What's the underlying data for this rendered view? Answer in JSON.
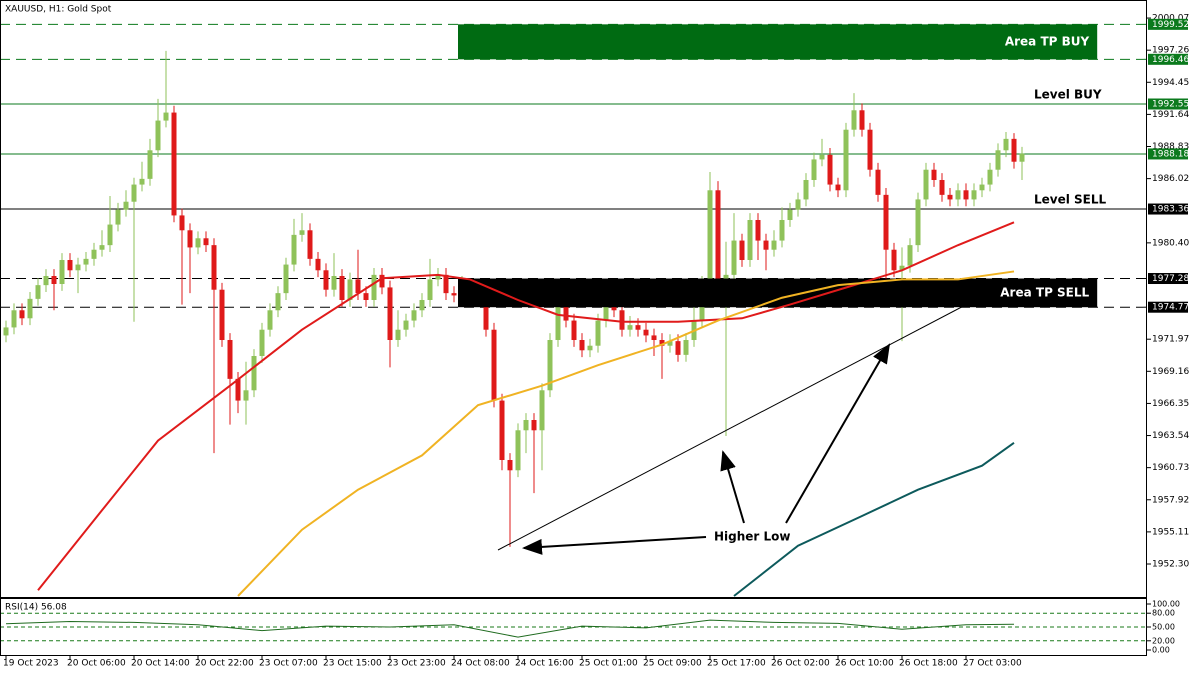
{
  "header": "XAUUSD, H1:  Gold Spot",
  "chart_data": [
    {
      "type": "candlestick",
      "up_color": "#8fc25a",
      "down_color": "#df1a1a",
      "xlim": [
        -0.75,
        142.625
      ],
      "xticks": [
        {
          "value": 0,
          "label": "19 Oct 2023"
        },
        {
          "value": 8,
          "label": "20 Oct 06:00"
        },
        {
          "value": 16,
          "label": "20 Oct 14:00"
        },
        {
          "value": 24,
          "label": "20 Oct 22:00"
        },
        {
          "value": 32,
          "label": "23 Oct 07:00"
        },
        {
          "value": 40,
          "label": "23 Oct 15:00"
        },
        {
          "value": 48,
          "label": "23 Oct 23:00"
        },
        {
          "value": 56,
          "label": "24 Oct 08:00"
        },
        {
          "value": 64,
          "label": "24 Oct 16:00"
        },
        {
          "value": 72,
          "label": "25 Oct 01:00"
        },
        {
          "value": 80,
          "label": "25 Oct 09:00"
        },
        {
          "value": 88,
          "label": "25 Oct 17:00"
        },
        {
          "value": 96,
          "label": "26 Oct 02:00"
        },
        {
          "value": 104,
          "label": "26 Oct 10:00"
        },
        {
          "value": 112,
          "label": "26 Oct 18:00"
        },
        {
          "value": 120,
          "label": "27 Oct 03:00"
        }
      ],
      "ylim": [
        1949.5,
        2001.3
      ],
      "yticks": [
        2000.07,
        1997.26,
        1994.45,
        1991.64,
        1988.83,
        1986.02,
        {
          "value": 1980.4,
          "label": "1980.40"
        },
        1971.97,
        1969.16,
        1966.35,
        1963.54,
        1960.73,
        1957.92,
        1955.11,
        {
          "value": 1952.3,
          "label": "1952.30"
        }
      ],
      "open": [
        1972.3,
        1973.0,
        1974.5,
        1973.8,
        1975.5,
        1976.7,
        1977.5,
        1976.8,
        1978.9,
        1978.0,
        1978.5,
        1979.0,
        1979.8,
        1980.2,
        1982.0,
        1983.3,
        1984.0,
        1985.5,
        1986.0,
        1988.5,
        1991.1,
        1991.8,
        1982.8,
        1981.5,
        1980.0,
        1980.8,
        1980.2,
        1976.3,
        1971.9,
        1968.5,
        1966.6,
        1967.5,
        1970.5,
        1972.8,
        1974.5,
        1976.0,
        1978.5,
        1981.1,
        1981.5,
        1979.0,
        1978.0,
        1976.3,
        1977.5,
        1975.4,
        1977.2,
        1976.0,
        1975.4,
        1977.6,
        1976.5,
        1971.9,
        1972.8,
        1973.6,
        1974.5,
        1975.4,
        1977.2,
        1977.6,
        1976.0,
        1975.8,
        1976.3,
        1976.6,
        1975.4,
        1972.8,
        1966.6,
        1961.4,
        1960.5,
        1964.0,
        1964.9,
        1964.0,
        1967.5,
        1971.9,
        1975.4,
        1973.6,
        1971.9,
        1971.0,
        1971.4,
        1973.6,
        1975.4,
        1974.5,
        1972.8,
        1973.2,
        1972.8,
        1972.3,
        1971.9,
        1971.4,
        1971.8,
        1970.6,
        1971.9,
        1973.6,
        1976.0,
        1985.0,
        1977.2,
        1977.6,
        1980.6,
        1978.9,
        1982.4,
        1980.6,
        1979.8,
        1980.6,
        1982.4,
        1983.3,
        1984.2,
        1985.9,
        1987.7,
        1988.1,
        1985.5,
        1985.0,
        1990.3,
        1992.0,
        1990.3,
        1986.8,
        1984.6,
        1979.8,
        1978.0,
        1978.4,
        1980.2,
        1984.2,
        1986.8,
        1985.9,
        1984.6,
        1984.2,
        1985.0,
        1984.2,
        1985.0,
        1985.5,
        1986.8,
        1988.5,
        1989.5,
        1987.5
      ],
      "high": [
        1973.6,
        1975.1,
        1975.1,
        1976.1,
        1977.3,
        1978.1,
        1978.1,
        1979.5,
        1979.5,
        1979.1,
        1979.6,
        1980.4,
        1981.5,
        1984.5,
        1983.9,
        1985.0,
        1986.1,
        1987.5,
        1989.5,
        1993.0,
        1997.2,
        1992.4,
        1983.4,
        1982.1,
        1981.4,
        1981.4,
        1980.8,
        1976.9,
        1972.5,
        1969.1,
        1970.0,
        1971.1,
        1973.4,
        1975.1,
        1976.6,
        1979.1,
        1982.5,
        1983.0,
        1982.1,
        1979.6,
        1978.6,
        1979.5,
        1978.1,
        1977.8,
        1979.8,
        1976.6,
        1978.2,
        1978.2,
        1977.1,
        1974.5,
        1974.2,
        1975.1,
        1976.0,
        1979.0,
        1978.2,
        1978.2,
        1976.6,
        1977.5,
        1977.2,
        1977.2,
        1976.0,
        1973.4,
        1967.2,
        1962.0,
        1964.6,
        1965.5,
        1965.5,
        1968.1,
        1972.5,
        1976.5,
        1977.0,
        1974.2,
        1972.5,
        1972.0,
        1974.2,
        1976.6,
        1976.0,
        1975.1,
        1974.0,
        1973.8,
        1973.4,
        1972.9,
        1972.5,
        1972.4,
        1972.4,
        1972.5,
        1976.5,
        1977.5,
        1986.6,
        1985.8,
        1980.5,
        1983.0,
        1981.2,
        1983.0,
        1983.0,
        1981.2,
        1981.5,
        1983.5,
        1983.9,
        1984.8,
        1986.5,
        1988.3,
        1989.5,
        1988.7,
        1986.1,
        1990.9,
        1993.5,
        1992.6,
        1990.9,
        1987.4,
        1985.2,
        1980.4,
        1980.0,
        1980.8,
        1984.8,
        1987.4,
        1987.4,
        1986.5,
        1985.2,
        1985.6,
        1985.6,
        1985.6,
        1986.1,
        1987.4,
        1989.1,
        1990.1,
        1990.0,
        1988.8
      ],
      "low": [
        1971.7,
        1972.4,
        1973.2,
        1973.2,
        1974.9,
        1976.1,
        1974.5,
        1976.2,
        1977.4,
        1976.0,
        1977.9,
        1978.4,
        1979.2,
        1979.6,
        1981.4,
        1982.7,
        1973.5,
        1984.9,
        1985.4,
        1987.9,
        1990.5,
        1982.2,
        1975.0,
        1976.0,
        1979.4,
        1979.6,
        1962.0,
        1971.3,
        1964.5,
        1965.5,
        1964.5,
        1966.9,
        1969.9,
        1972.2,
        1973.9,
        1975.4,
        1977.9,
        1980.5,
        1978.4,
        1977.4,
        1975.7,
        1975.7,
        1974.8,
        1974.8,
        1975.4,
        1974.8,
        1974.8,
        1975.9,
        1969.5,
        1971.3,
        1972.2,
        1973.0,
        1973.9,
        1974.8,
        1976.6,
        1975.4,
        1975.2,
        1975.2,
        1975.7,
        1974.8,
        1972.2,
        1966.0,
        1960.5,
        1953.8,
        1959.9,
        1962.0,
        1958.5,
        1960.5,
        1966.9,
        1971.3,
        1973.0,
        1971.3,
        1970.4,
        1970.4,
        1970.8,
        1973.0,
        1973.9,
        1972.2,
        1972.2,
        1972.2,
        1971.7,
        1970.5,
        1968.5,
        1970.8,
        1970.0,
        1970.0,
        1971.3,
        1973.0,
        1975.4,
        1976.0,
        1963.5,
        1977.0,
        1978.3,
        1978.3,
        1978.9,
        1978.0,
        1979.2,
        1980.0,
        1981.8,
        1982.7,
        1983.6,
        1985.3,
        1987.1,
        1984.9,
        1984.4,
        1984.4,
        1989.7,
        1989.7,
        1986.2,
        1984.0,
        1976.5,
        1977.4,
        1971.8,
        1977.8,
        1979.6,
        1983.6,
        1985.3,
        1984.0,
        1983.6,
        1983.6,
        1983.6,
        1983.6,
        1984.4,
        1984.9,
        1986.2,
        1987.9,
        1986.9,
        1985.9
      ],
      "close": [
        1973.0,
        1974.5,
        1973.8,
        1975.5,
        1976.7,
        1977.5,
        1976.8,
        1978.9,
        1978.0,
        1978.5,
        1979.0,
        1979.8,
        1980.2,
        1982.0,
        1983.3,
        1984.0,
        1985.5,
        1986.0,
        1988.5,
        1991.1,
        1991.8,
        1982.8,
        1981.5,
        1980.0,
        1980.8,
        1980.2,
        1976.3,
        1971.9,
        1968.5,
        1966.6,
        1967.5,
        1970.5,
        1972.8,
        1974.5,
        1976.0,
        1978.5,
        1981.1,
        1981.5,
        1979.0,
        1978.0,
        1976.3,
        1977.5,
        1975.4,
        1977.2,
        1976.0,
        1975.4,
        1977.6,
        1976.5,
        1971.9,
        1972.8,
        1973.6,
        1974.5,
        1975.4,
        1977.2,
        1977.6,
        1976.0,
        1975.8,
        1976.3,
        1976.6,
        1975.4,
        1972.8,
        1966.6,
        1961.4,
        1960.5,
        1964.0,
        1964.9,
        1964.0,
        1967.5,
        1971.9,
        1975.4,
        1973.6,
        1971.9,
        1971.0,
        1971.4,
        1973.6,
        1975.4,
        1974.5,
        1972.8,
        1973.2,
        1972.8,
        1972.3,
        1971.9,
        1971.4,
        1971.8,
        1970.6,
        1971.9,
        1973.6,
        1976.0,
        1985.0,
        1977.2,
        1977.6,
        1980.6,
        1978.9,
        1982.4,
        1980.6,
        1979.8,
        1980.6,
        1982.4,
        1983.3,
        1984.2,
        1985.9,
        1987.7,
        1988.1,
        1985.5,
        1985.0,
        1990.3,
        1992.0,
        1990.3,
        1986.8,
        1984.6,
        1979.8,
        1978.0,
        1978.4,
        1980.2,
        1984.2,
        1986.8,
        1985.9,
        1984.6,
        1984.2,
        1985.0,
        1984.2,
        1985.0,
        1985.5,
        1986.8,
        1988.5,
        1989.5,
        1987.5,
        1988.2
      ],
      "overlays": [
        {
          "color": "#e01b1b",
          "x": [
            4,
            12,
            19,
            28,
            37,
            47,
            54,
            58,
            64,
            69,
            77,
            84,
            92,
            98,
            106,
            112,
            119,
            126
          ],
          "values": [
            1950.0,
            1957.0,
            1963.1,
            1967.9,
            1972.8,
            1977.3,
            1977.6,
            1977.2,
            1975.4,
            1974.1,
            1973.5,
            1973.5,
            1973.8,
            1975.0,
            1976.7,
            1978.0,
            1980.2,
            1982.2
          ]
        },
        {
          "color": "#f0b323",
          "x": [
            29,
            37,
            44,
            52,
            59,
            67,
            74,
            82,
            89,
            97,
            104,
            112,
            119,
            126
          ],
          "values": [
            1949.5,
            1955.3,
            1958.8,
            1961.8,
            1966.2,
            1967.9,
            1969.7,
            1971.5,
            1973.6,
            1975.6,
            1976.7,
            1977.2,
            1977.2,
            1977.9
          ]
        },
        {
          "color": "#0d5a5c",
          "x": [
            91,
            99,
            107,
            114,
            122,
            126
          ],
          "values": [
            1949.5,
            1953.9,
            1956.5,
            1958.8,
            1960.9,
            1962.9
          ]
        }
      ],
      "levels": [
        {
          "value": 1999.52,
          "color": "#0b7a1d",
          "style": "dashed"
        },
        {
          "value": 1996.46,
          "color": "#0b7a1d",
          "style": "dashed"
        },
        {
          "value": 1992.55,
          "color": "#0b7a1d",
          "style": "solid",
          "text": "Level BUY"
        },
        {
          "value": 1988.18,
          "color": "#0b7a1d",
          "style": "solid"
        },
        {
          "value": 1983.36,
          "color": "#000000",
          "style": "solid",
          "text": "Level SELL"
        },
        {
          "value": 1977.28,
          "color": "#000000",
          "style": "dashed"
        },
        {
          "value": 1974.77,
          "color": "#000000",
          "style": "dashed"
        }
      ],
      "zones": [
        {
          "low": 1996.46,
          "high": 1999.52,
          "x_from": 56.5,
          "x_to": 136.4,
          "color": "#006b12",
          "text": "Area TP BUY"
        },
        {
          "low": 1974.77,
          "high": 1977.28,
          "x_from": 56.5,
          "x_to": 136.4,
          "color": "#000000",
          "text": "Area TP SELL"
        }
      ],
      "annotation": "Higher Low"
    },
    {
      "type": "line",
      "title": "RSI(14) 56.08",
      "color": "#1f6b1f",
      "xlim": [
        -0.75,
        142.625
      ],
      "x": [
        0,
        8,
        16,
        24,
        32,
        40,
        48,
        56,
        64,
        72,
        80,
        88,
        96,
        104,
        112,
        120,
        126
      ],
      "values": [
        57,
        62,
        60,
        55,
        42,
        52,
        50,
        55,
        28,
        52,
        48,
        65,
        60,
        58,
        45,
        55,
        56
      ],
      "ylim": [
        0,
        100
      ],
      "yticks": [
        {
          "value": 100,
          "label": "100.00"
        },
        {
          "value": 80,
          "label": "80.00"
        },
        {
          "value": 50,
          "label": "50.00"
        },
        {
          "value": 20,
          "label": "20.00"
        },
        {
          "value": 0,
          "label": "0.00"
        }
      ],
      "levels": [
        80,
        50,
        20
      ]
    }
  ]
}
